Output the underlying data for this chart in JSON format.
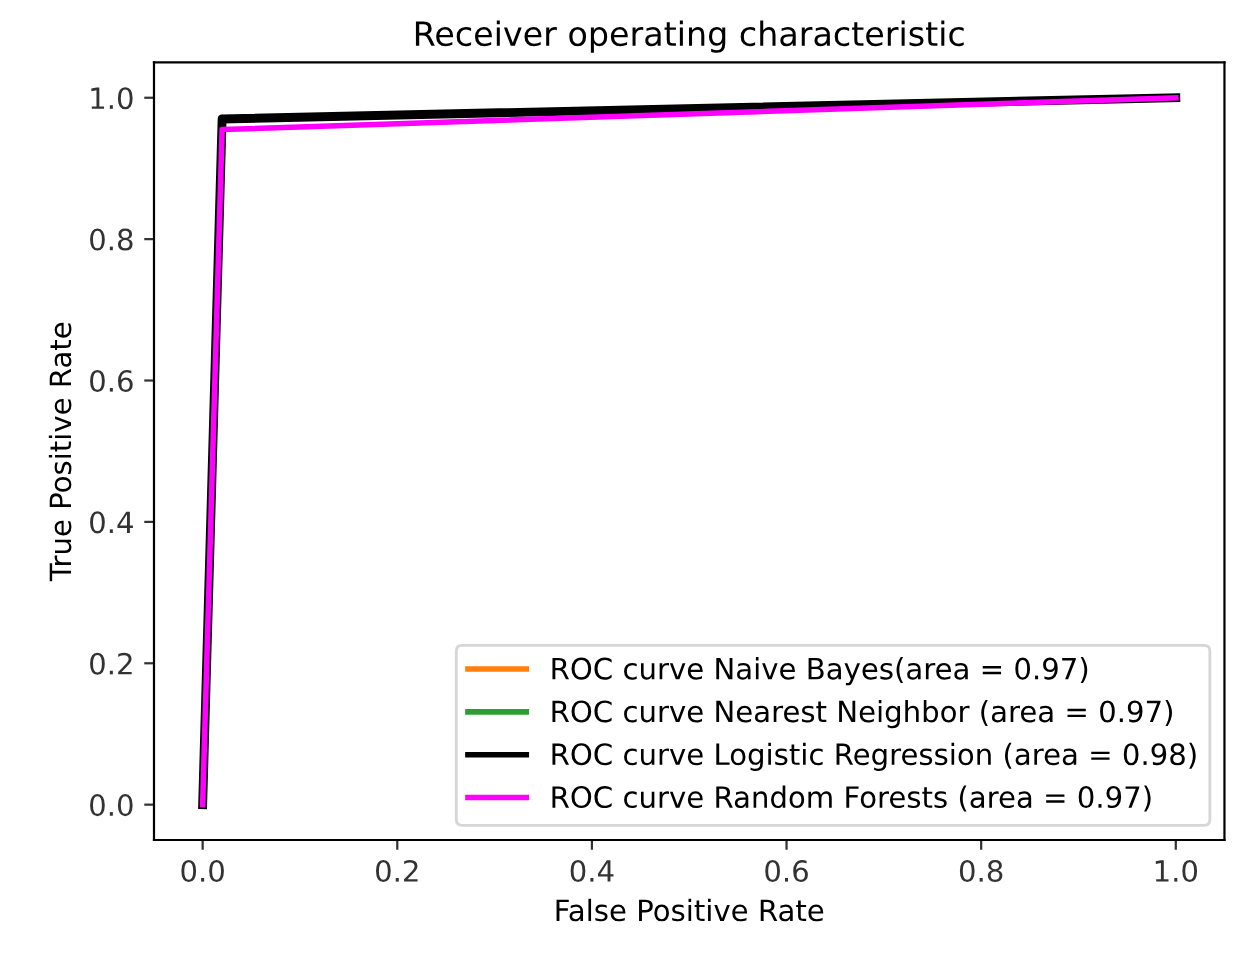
{
  "chart_data": {
    "type": "line",
    "title": "Receiver operating characteristic",
    "xlabel": "False Positive Rate",
    "ylabel": "True Positive Rate",
    "x": [
      0,
      0.02,
      1
    ],
    "series": [
      {
        "name": "ROC curve Naive Bayes(area = 0.97)",
        "color": "#ff7f0e",
        "values": [
          null,
          null,
          null
        ]
      },
      {
        "name": "ROC curve Nearest Neighbor (area = 0.97)",
        "color": "#2ca02c",
        "values": [
          null,
          null,
          null
        ]
      },
      {
        "name": "ROC curve Logistic Regression (area = 0.98)",
        "color": "#000000",
        "values": [
          0,
          0.97,
          1
        ]
      },
      {
        "name": "ROC curve Random Forests (area = 0.97)",
        "color": "#ff00ff",
        "values": [
          0,
          0.955,
          1
        ]
      }
    ],
    "xlim": [
      -0.05,
      1.05
    ],
    "ylim": [
      -0.05,
      1.05
    ],
    "xticks": [
      {
        "value": 0,
        "label": "0.0"
      },
      0.2,
      0.4,
      0.6,
      0.8,
      {
        "value": 1,
        "label": "1.0"
      }
    ],
    "yticks": [
      {
        "value": 0,
        "label": "0.0"
      },
      0.2,
      0.4,
      0.6,
      0.8,
      {
        "value": 1,
        "label": "1.0"
      }
    ],
    "legend": "lower right",
    "grid": false
  }
}
